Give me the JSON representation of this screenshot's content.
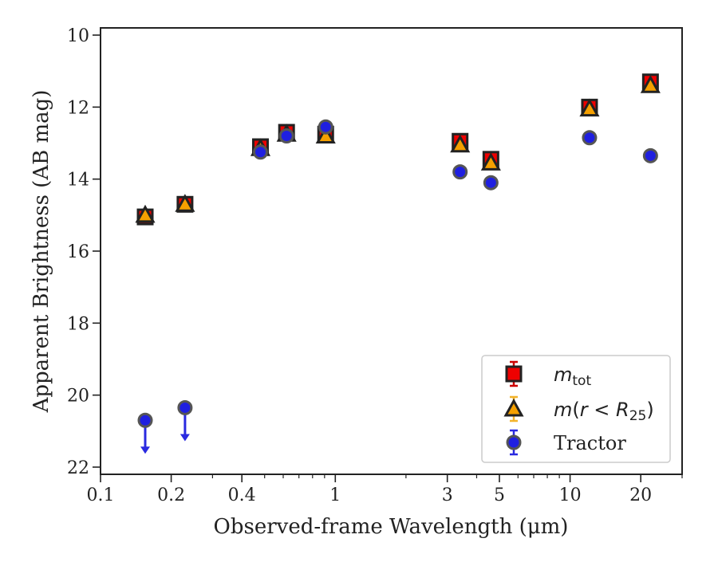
{
  "chart_data": {
    "type": "scatter",
    "xlabel": "Observed-frame Wavelength (μm)",
    "ylabel": "Apparent Brightness (AB mag)",
    "xscale": "log",
    "xlim": [
      0.1,
      30
    ],
    "ylim": [
      22.2,
      9.8
    ],
    "y_inverted": true,
    "x_ticks": [
      0.1,
      0.2,
      0.4,
      1,
      3,
      5,
      10,
      20
    ],
    "x_tick_labels": [
      "0.1",
      "0.2",
      "0.4",
      "1",
      "3",
      "5",
      "10",
      "20"
    ],
    "y_ticks": [
      10,
      12,
      14,
      16,
      18,
      20,
      22
    ],
    "y_tick_labels": [
      "10",
      "12",
      "14",
      "16",
      "18",
      "20",
      "22"
    ],
    "grid": false,
    "legend_position": "bottom-right",
    "series": [
      {
        "name": "m_tot",
        "legend_parts": [
          "m",
          "tot"
        ],
        "marker": "square",
        "color": "#ee0000",
        "edge_color": "#222222",
        "errbar_color": "#cc0000",
        "x": [
          0.155,
          0.229,
          0.48,
          0.62,
          0.91,
          3.4,
          4.6,
          12.1,
          22.0
        ],
        "y": [
          15.05,
          14.7,
          13.1,
          12.7,
          12.75,
          12.95,
          13.45,
          12.0,
          11.3
        ]
      },
      {
        "name": "m(r < R25)",
        "legend_parts": [
          "m(",
          "r",
          " < ",
          "R",
          "25",
          ")"
        ],
        "marker": "triangle",
        "color": "#f5a000",
        "edge_color": "#222222",
        "errbar_color": "#f2b32a",
        "x": [
          0.155,
          0.229,
          0.48,
          0.62,
          0.91,
          3.4,
          4.6,
          12.1,
          22.0
        ],
        "y": [
          15.0,
          14.7,
          13.15,
          12.75,
          12.8,
          13.05,
          13.55,
          12.05,
          11.4
        ]
      },
      {
        "name": "Tractor",
        "marker": "circle",
        "color": "#1f1fe0",
        "edge_color": "#555555",
        "errbar_color": "#2a2ae0",
        "x": [
          0.155,
          0.229,
          0.48,
          0.62,
          0.91,
          3.4,
          4.6,
          12.1,
          22.0
        ],
        "y": [
          20.7,
          20.35,
          13.25,
          12.8,
          12.55,
          13.8,
          14.1,
          12.85,
          13.35
        ],
        "upper_limit": [
          true,
          true,
          false,
          false,
          false,
          false,
          false,
          false,
          false
        ]
      }
    ]
  }
}
